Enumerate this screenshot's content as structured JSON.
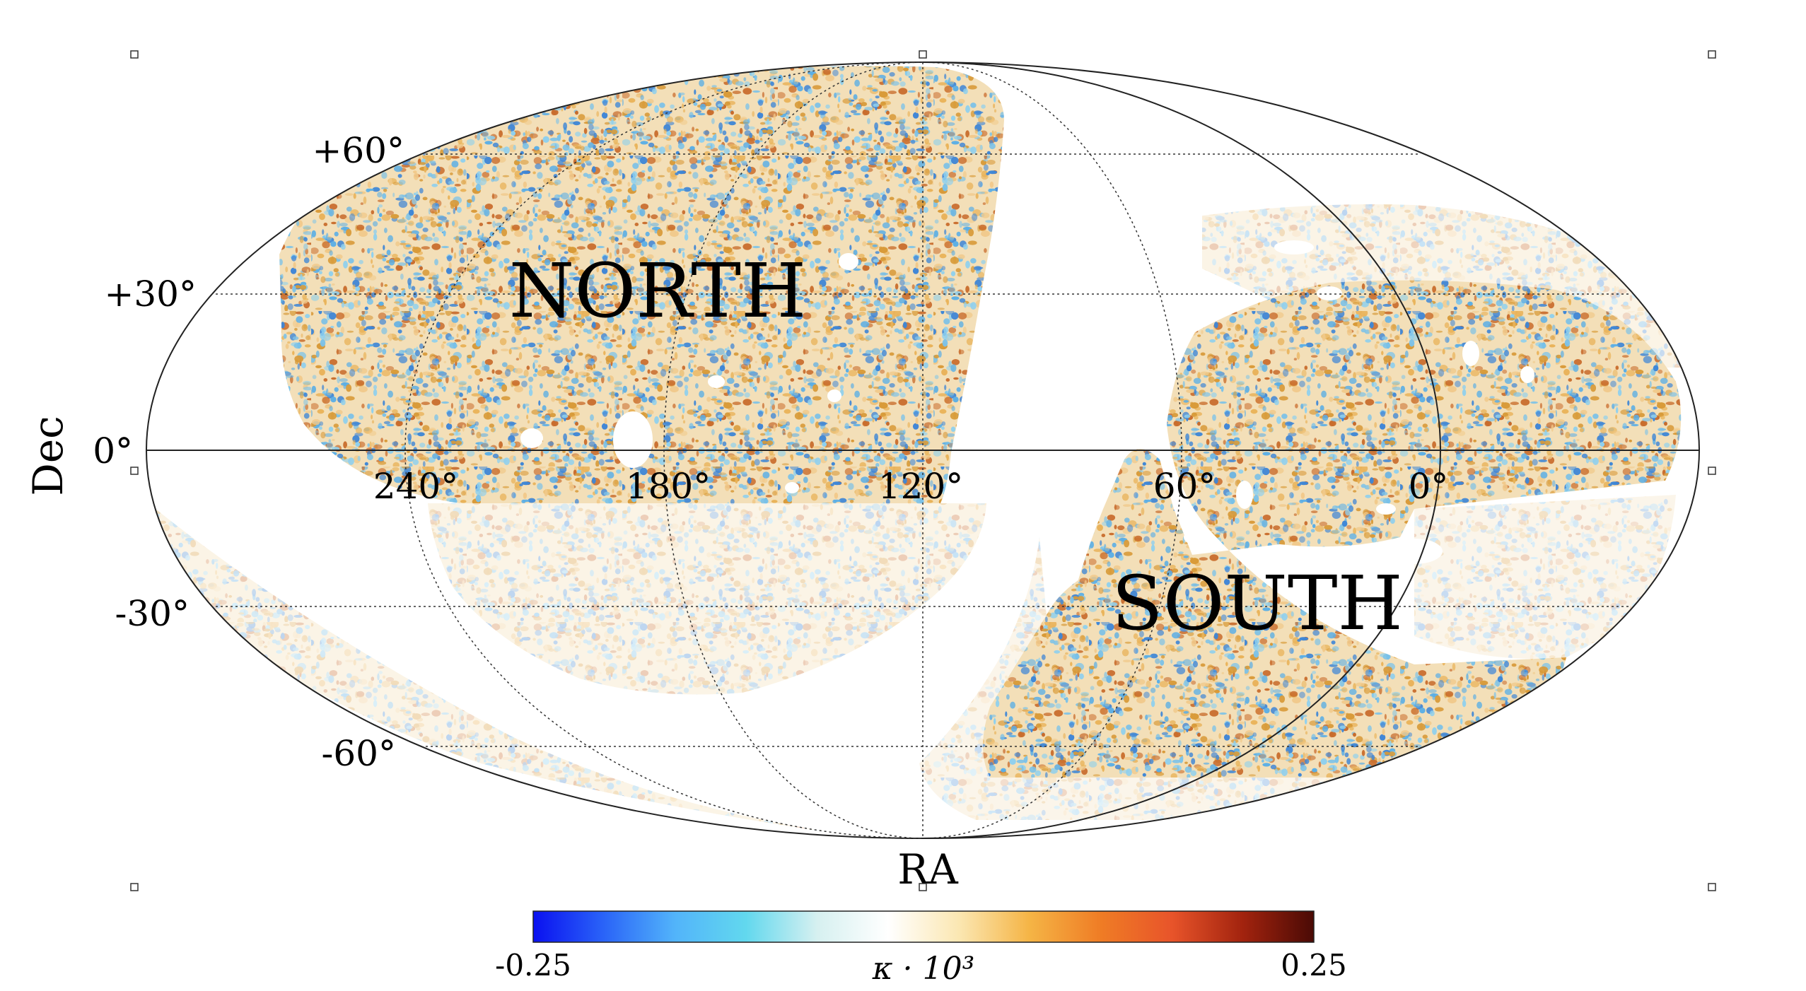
{
  "map": {
    "projection": "mollweide",
    "region_labels": {
      "north": "NORTH",
      "south": "SOUTH"
    },
    "axes": {
      "xlabel": "RA",
      "ylabel": "Dec",
      "dec_ticks": [
        {
          "value": 60,
          "label": "+60°"
        },
        {
          "value": 30,
          "label": "+30°"
        },
        {
          "value": 0,
          "label": "0°"
        },
        {
          "value": -30,
          "label": "-30°"
        },
        {
          "value": -60,
          "label": "-60°"
        }
      ],
      "ra_ticks": [
        {
          "value": 240,
          "label": "240°"
        },
        {
          "value": 180,
          "label": "180°"
        },
        {
          "value": 120,
          "label": "120°"
        },
        {
          "value": 60,
          "label": "60°"
        },
        {
          "value": 0,
          "label": "0°"
        }
      ]
    }
  },
  "colorbar": {
    "min_label": "-0.25",
    "max_label": "0.25",
    "min": -0.25,
    "max": 0.25,
    "quantity_label": "κ · 10³",
    "colors": [
      "#0a10f0",
      "#2a64f8",
      "#52b4fa",
      "#62d8ee",
      "#d6f0f0",
      "#ffffff",
      "#fbe7b2",
      "#f5b445",
      "#ef7c25",
      "#e8542a",
      "#a2230e",
      "#4a0a05"
    ]
  }
}
